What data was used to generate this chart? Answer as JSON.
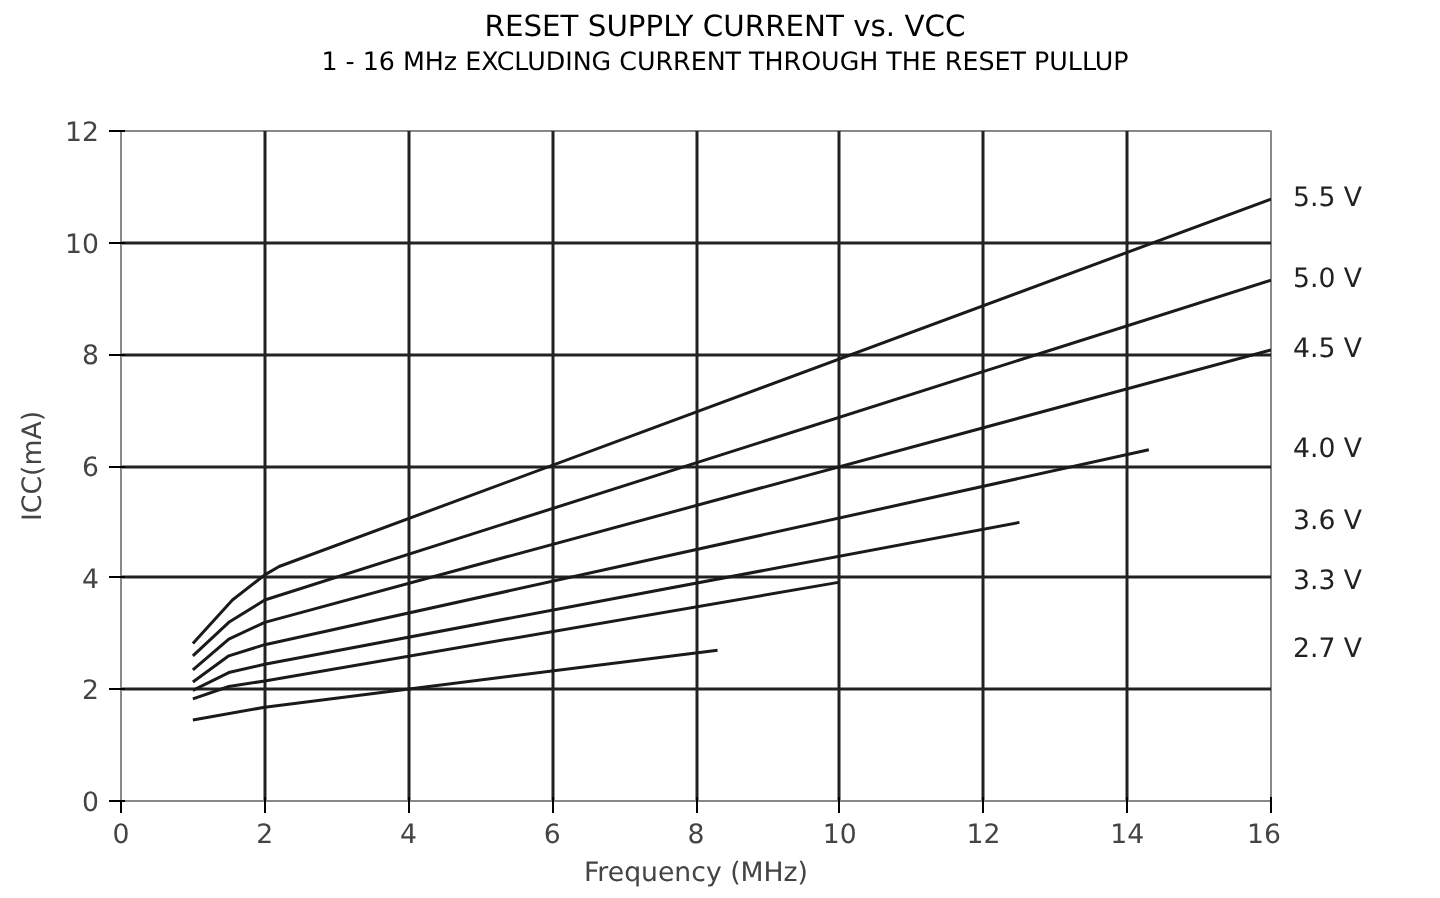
{
  "chart_data": {
    "type": "line",
    "title": "RESET SUPPLY CURRENT vs. VCC",
    "subtitle": "1 - 16 MHz EXCLUDING CURRENT THROUGH THE RESET PULLUP",
    "xlabel": "Frequency (MHz)",
    "ylabel": "ICC(mA)",
    "xlim": [
      0,
      16
    ],
    "xticks": [
      0,
      2,
      4,
      6,
      8,
      10,
      12,
      14,
      16
    ],
    "ylim": [
      0,
      12
    ],
    "yticks": [
      0,
      2,
      4,
      6,
      8,
      10,
      12
    ],
    "grid": true,
    "marker": "none",
    "line_style": "solid",
    "series": [
      {
        "name": "5.5 V",
        "color": "#1a1a1a",
        "x": [
          1,
          1.55,
          2,
          2.2,
          16
        ],
        "values": [
          2.82,
          3.6,
          4.05,
          4.2,
          10.78
        ]
      },
      {
        "name": "5.0 V",
        "color": "#1a1a1a",
        "x": [
          1,
          1.5,
          2,
          16
        ],
        "values": [
          2.6,
          3.2,
          3.6,
          9.33
        ]
      },
      {
        "name": "4.5 V",
        "color": "#1a1a1a",
        "x": [
          1,
          1.5,
          2,
          16
        ],
        "values": [
          2.35,
          2.9,
          3.2,
          8.08
        ]
      },
      {
        "name": "4.0 V",
        "color": "#1a1a1a",
        "x": [
          1,
          1.5,
          2,
          14.3
        ],
        "values": [
          2.13,
          2.6,
          2.8,
          6.29
        ]
      },
      {
        "name": "3.6 V",
        "color": "#1a1a1a",
        "x": [
          1,
          1.5,
          2,
          12.5
        ],
        "values": [
          1.98,
          2.3,
          2.45,
          4.99
        ]
      },
      {
        "name": "3.3 V",
        "color": "#1a1a1a",
        "x": [
          1,
          1.5,
          2,
          10
        ],
        "values": [
          1.83,
          2.05,
          2.15,
          3.92
        ]
      },
      {
        "name": "2.7 V",
        "color": "#1a1a1a",
        "x": [
          1,
          2,
          8.3
        ],
        "values": [
          1.45,
          1.68,
          2.7
        ]
      }
    ]
  }
}
